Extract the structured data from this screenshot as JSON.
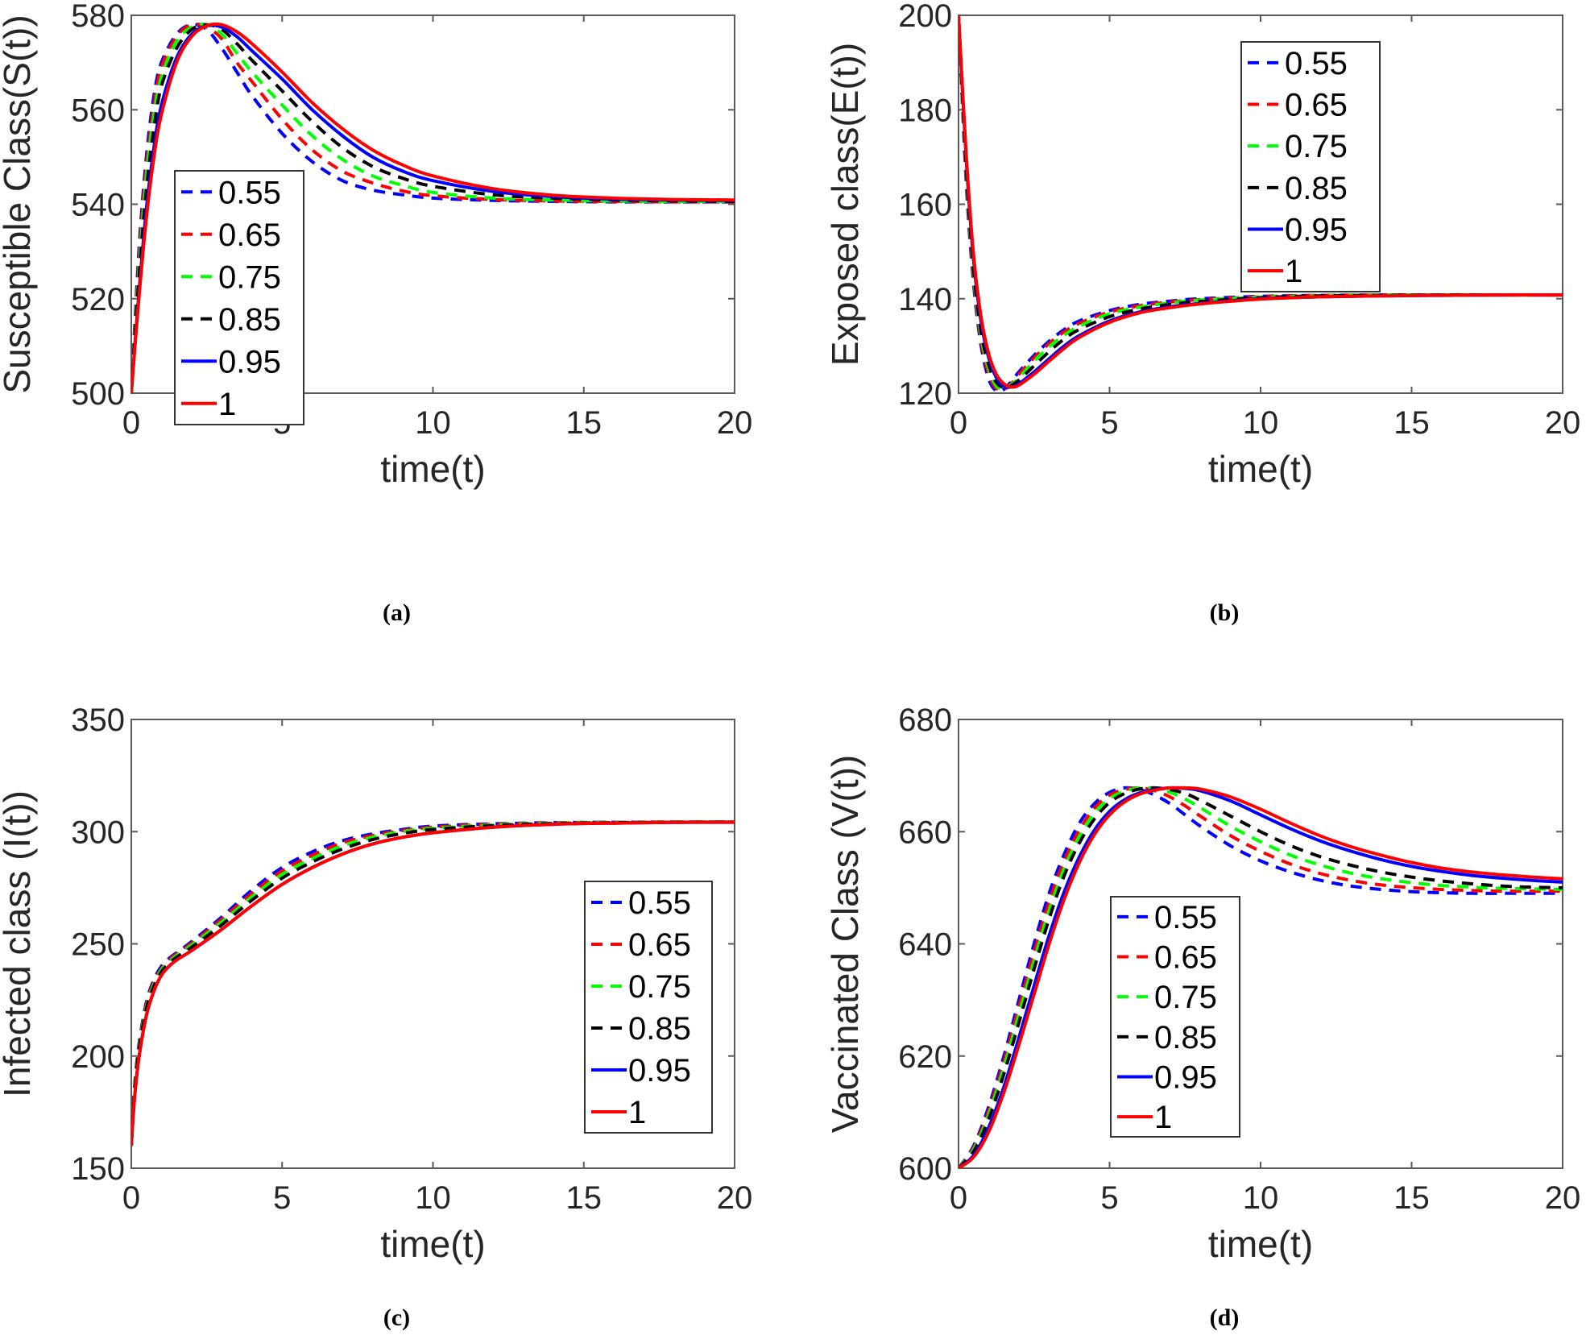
{
  "chart_data": [
    {
      "id": "a",
      "type": "line",
      "caption": "(a)",
      "title": "",
      "xlabel": "time(t)",
      "ylabel": "Susceptible Class(S(t))",
      "xlim": [
        0,
        20
      ],
      "ylim": [
        500,
        580
      ],
      "xticks": [
        0,
        5,
        10,
        15,
        20
      ],
      "yticks": [
        500,
        520,
        540,
        560,
        580
      ],
      "grid": false,
      "legend_position": "middle-left",
      "x": [
        0,
        0.25,
        0.5,
        0.75,
        1,
        1.5,
        2,
        2.5,
        3,
        3.5,
        4,
        5,
        6,
        7,
        8,
        9,
        10,
        12,
        14,
        16,
        18,
        20
      ],
      "series": [
        {
          "name": "0.55",
          "color": "#0000ff",
          "dash": true,
          "values": [
            500,
            530,
            550,
            563,
            570,
            576,
            578,
            577,
            573,
            568,
            563,
            555,
            549,
            545,
            543,
            542,
            541.3,
            540.8,
            540.6,
            540.5,
            540.5,
            540.5
          ]
        },
        {
          "name": "0.65",
          "color": "#ff0000",
          "dash": true,
          "values": [
            500,
            528,
            548,
            561,
            569,
            575.5,
            578,
            577.5,
            575,
            570,
            566,
            558,
            551.5,
            547,
            544.5,
            542.8,
            541.8,
            541,
            540.7,
            540.6,
            540.5,
            540.5
          ]
        },
        {
          "name": "0.75",
          "color": "#00ff00",
          "dash": true,
          "values": [
            500,
            526,
            546,
            559,
            567,
            574.5,
            577.5,
            578,
            576,
            572,
            568,
            561,
            554.5,
            549.5,
            546,
            544,
            542.5,
            541.3,
            540.9,
            540.7,
            540.6,
            540.6
          ]
        },
        {
          "name": "0.85",
          "color": "#000000",
          "dash": true,
          "values": [
            500,
            524,
            543,
            556,
            565,
            573,
            577,
            578,
            577,
            574,
            570.5,
            564,
            557.5,
            552,
            548,
            545.5,
            543.8,
            542,
            541.3,
            540.9,
            540.7,
            540.6
          ]
        },
        {
          "name": "0.95",
          "color": "#0000ff",
          "dash": false,
          "values": [
            500,
            521,
            539,
            552,
            561,
            571,
            576,
            577.8,
            577.5,
            575.5,
            572.5,
            566.5,
            560,
            554.5,
            550,
            547,
            545,
            542.7,
            541.6,
            541.1,
            540.9,
            540.8
          ]
        },
        {
          "name": "1",
          "color": "#ff0000",
          "dash": false,
          "values": [
            500,
            520,
            537,
            550,
            559,
            570,
            575.5,
            577.8,
            578,
            576.5,
            574,
            568,
            561.5,
            556,
            551.5,
            548.3,
            546,
            543.3,
            541.9,
            541.3,
            541,
            540.9
          ]
        }
      ]
    },
    {
      "id": "b",
      "type": "line",
      "caption": "(b)",
      "title": "",
      "xlabel": "time(t)",
      "ylabel": "Exposed class(E(t))",
      "xlim": [
        0,
        20
      ],
      "ylim": [
        120,
        200
      ],
      "xticks": [
        0,
        5,
        10,
        15,
        20
      ],
      "yticks": [
        120,
        140,
        160,
        180,
        200
      ],
      "grid": false,
      "legend_position": "top-right",
      "x": [
        0,
        0.25,
        0.5,
        0.75,
        1,
        1.25,
        1.5,
        1.75,
        2,
        2.5,
        3,
        3.5,
        4,
        5,
        6,
        7,
        8,
        10,
        12,
        14,
        16,
        18,
        20
      ],
      "series": [
        {
          "name": "0.55",
          "color": "#0000ff",
          "dash": true,
          "values": [
            200,
            165,
            143,
            130,
            123,
            120.5,
            120.8,
            122.5,
            124.5,
            128,
            131,
            133.5,
            135.3,
            137.5,
            138.8,
            139.5,
            140,
            140.5,
            140.7,
            140.8,
            140.8,
            140.8,
            140.8
          ]
        },
        {
          "name": "0.65",
          "color": "#ff0000",
          "dash": true,
          "values": [
            200,
            166,
            144,
            131,
            124,
            121,
            120.8,
            122,
            124,
            127.5,
            130.5,
            133,
            134.8,
            137.2,
            138.5,
            139.3,
            139.8,
            140.4,
            140.7,
            140.8,
            140.8,
            140.8,
            140.8
          ]
        },
        {
          "name": "0.75",
          "color": "#00ff00",
          "dash": true,
          "values": [
            200,
            167,
            145,
            132,
            125,
            121.5,
            121,
            121.8,
            123.3,
            126.8,
            129.8,
            132.3,
            134.2,
            136.8,
            138.2,
            139.1,
            139.7,
            140.3,
            140.6,
            140.8,
            140.8,
            140.8,
            140.8
          ]
        },
        {
          "name": "0.85",
          "color": "#000000",
          "dash": true,
          "values": [
            200,
            168,
            146,
            133,
            126,
            122.3,
            121.2,
            121.6,
            122.8,
            125.8,
            128.8,
            131.5,
            133.5,
            136.2,
            137.8,
            138.8,
            139.4,
            140.2,
            140.6,
            140.7,
            140.8,
            140.8,
            140.8
          ]
        },
        {
          "name": "0.95",
          "color": "#0000ff",
          "dash": false,
          "values": [
            200,
            170,
            148,
            135,
            127.5,
            123.3,
            121.5,
            121.3,
            122,
            124.5,
            127.3,
            130,
            132.2,
            135.3,
            137.2,
            138.3,
            139,
            140,
            140.4,
            140.6,
            140.7,
            140.8,
            140.8
          ]
        },
        {
          "name": "1",
          "color": "#ff0000",
          "dash": false,
          "values": [
            200,
            171,
            149,
            136,
            128.3,
            124,
            122,
            121.3,
            121.7,
            124,
            126.8,
            129.5,
            131.8,
            135,
            137,
            138.1,
            138.9,
            139.9,
            140.4,
            140.6,
            140.7,
            140.8,
            140.8
          ]
        }
      ]
    },
    {
      "id": "c",
      "type": "line",
      "caption": "(c)",
      "title": "",
      "xlabel": "time(t)",
      "ylabel": "Infected class (I(t))",
      "xlim": [
        0,
        20
      ],
      "ylim": [
        150,
        350
      ],
      "xticks": [
        0,
        5,
        10,
        15,
        20
      ],
      "yticks": [
        150,
        200,
        250,
        300,
        350
      ],
      "grid": false,
      "legend_position": "right",
      "x": [
        0,
        0.1,
        0.25,
        0.5,
        0.75,
        1,
        1.25,
        1.5,
        2,
        3,
        4,
        5,
        6,
        7,
        8,
        9,
        10,
        12,
        14,
        16,
        18,
        20
      ],
      "series": [
        {
          "name": "0.55",
          "color": "#0000ff",
          "dash": true,
          "values": [
            160,
            185,
            205,
            224,
            234,
            240,
            243.5,
            246,
            251,
            262,
            274,
            284,
            291,
            296,
            299,
            301,
            302.5,
            303.5,
            304,
            304.2,
            304.3,
            304.3
          ]
        },
        {
          "name": "0.65",
          "color": "#ff0000",
          "dash": true,
          "values": [
            160,
            184,
            204,
            223,
            233,
            239,
            242.8,
            245.5,
            250.3,
            261,
            272.5,
            282.5,
            289.5,
            295,
            298.3,
            300.5,
            302,
            303.3,
            303.9,
            304.2,
            304.3,
            304.3
          ]
        },
        {
          "name": "0.75",
          "color": "#00ff00",
          "dash": true,
          "values": [
            160,
            183,
            203,
            222,
            232,
            238.5,
            242,
            244.8,
            249.5,
            259.8,
            271,
            281,
            288,
            293.7,
            297.5,
            300,
            301.5,
            303,
            303.8,
            304.1,
            304.3,
            304.3
          ]
        },
        {
          "name": "0.85",
          "color": "#000000",
          "dash": true,
          "values": [
            160,
            182,
            202,
            221,
            231,
            237.5,
            241.3,
            244,
            248.5,
            258.5,
            269.5,
            279.3,
            286.5,
            292.3,
            296.5,
            299.2,
            301,
            302.7,
            303.6,
            304,
            304.2,
            304.3
          ]
        },
        {
          "name": "0.95",
          "color": "#0000ff",
          "dash": false,
          "values": [
            160,
            180,
            199,
            218,
            229,
            236,
            240,
            242.8,
            247,
            256.5,
            267,
            276.5,
            284,
            290,
            294.5,
            297.5,
            299.5,
            302,
            303.3,
            303.8,
            304.1,
            304.2
          ]
        },
        {
          "name": "1",
          "color": "#ff0000",
          "dash": false,
          "values": [
            160,
            180,
            199,
            218,
            229,
            236,
            240,
            242.8,
            247,
            256.5,
            267,
            276.5,
            284,
            290,
            294.5,
            297.5,
            299.5,
            302,
            303.3,
            303.8,
            304.1,
            304.2
          ]
        }
      ]
    },
    {
      "id": "d",
      "type": "line",
      "caption": "(d)",
      "title": "",
      "xlabel": "time(t)",
      "ylabel": "Vaccinated Class (V(t))",
      "xlim": [
        0,
        20
      ],
      "ylim": [
        600,
        680
      ],
      "xticks": [
        0,
        5,
        10,
        15,
        20
      ],
      "yticks": [
        600,
        620,
        640,
        660,
        680
      ],
      "grid": false,
      "legend_position": "center",
      "x": [
        0,
        0.5,
        1,
        1.5,
        2,
        2.5,
        3,
        3.5,
        4,
        4.5,
        5,
        5.5,
        6,
        6.5,
        7,
        7.5,
        8,
        9,
        10,
        11,
        12,
        13,
        14,
        15,
        16,
        17,
        18,
        19,
        20
      ],
      "series": [
        {
          "name": "0.55",
          "color": "#0000ff",
          "dash": true,
          "values": [
            600,
            604,
            611,
            620,
            630,
            640,
            649,
            656,
            661.5,
            665,
            667,
            667.8,
            667.5,
            666.5,
            665,
            663,
            661,
            657.5,
            654.8,
            652.8,
            651.3,
            650.3,
            649.7,
            649.3,
            649.1,
            649,
            649,
            649,
            649
          ]
        },
        {
          "name": "0.65",
          "color": "#ff0000",
          "dash": true,
          "values": [
            600,
            603.7,
            610.3,
            619,
            628.8,
            638.5,
            647.5,
            654.8,
            660.3,
            664.2,
            666.5,
            667.5,
            667.8,
            667.3,
            666.2,
            664.6,
            662.8,
            659.3,
            656.5,
            654.2,
            652.5,
            651.3,
            650.5,
            650,
            649.7,
            649.5,
            649.4,
            649.4,
            649.4
          ]
        },
        {
          "name": "0.75",
          "color": "#00ff00",
          "dash": true,
          "values": [
            600,
            603.4,
            609.6,
            618,
            627.5,
            637,
            646,
            653.5,
            659.2,
            663.3,
            665.9,
            667.2,
            667.8,
            667.7,
            667,
            665.8,
            664.3,
            661,
            658.2,
            655.8,
            654,
            652.6,
            651.6,
            650.9,
            650.4,
            650.1,
            649.9,
            649.8,
            649.7
          ]
        },
        {
          "name": "0.85",
          "color": "#000000",
          "dash": true,
          "values": [
            600,
            603,
            608.8,
            616.8,
            626,
            635.5,
            644.5,
            652.2,
            658,
            662.3,
            665.2,
            666.8,
            667.6,
            667.8,
            667.5,
            666.8,
            665.6,
            662.8,
            660,
            657.5,
            655.5,
            654,
            652.8,
            651.9,
            651.2,
            650.7,
            650.3,
            650.1,
            650
          ]
        },
        {
          "name": "0.95",
          "color": "#0000ff",
          "dash": false,
          "values": [
            600,
            602.3,
            607.3,
            614.5,
            623.3,
            632.5,
            641.5,
            649.3,
            655.5,
            660.3,
            663.6,
            665.7,
            666.9,
            667.5,
            667.8,
            667.7,
            667.3,
            665.5,
            663,
            660.5,
            658.3,
            656.5,
            655,
            653.8,
            652.9,
            652.2,
            651.7,
            651.3,
            651
          ]
        },
        {
          "name": "1",
          "color": "#ff0000",
          "dash": false,
          "values": [
            600,
            602,
            606.5,
            613.5,
            622,
            631,
            640,
            648,
            654.5,
            659.5,
            663,
            665.3,
            666.7,
            667.4,
            667.8,
            667.8,
            667.6,
            666.2,
            664,
            661.5,
            659.2,
            657.3,
            655.8,
            654.5,
            653.5,
            652.8,
            652.3,
            651.9,
            651.6
          ]
        }
      ]
    }
  ]
}
